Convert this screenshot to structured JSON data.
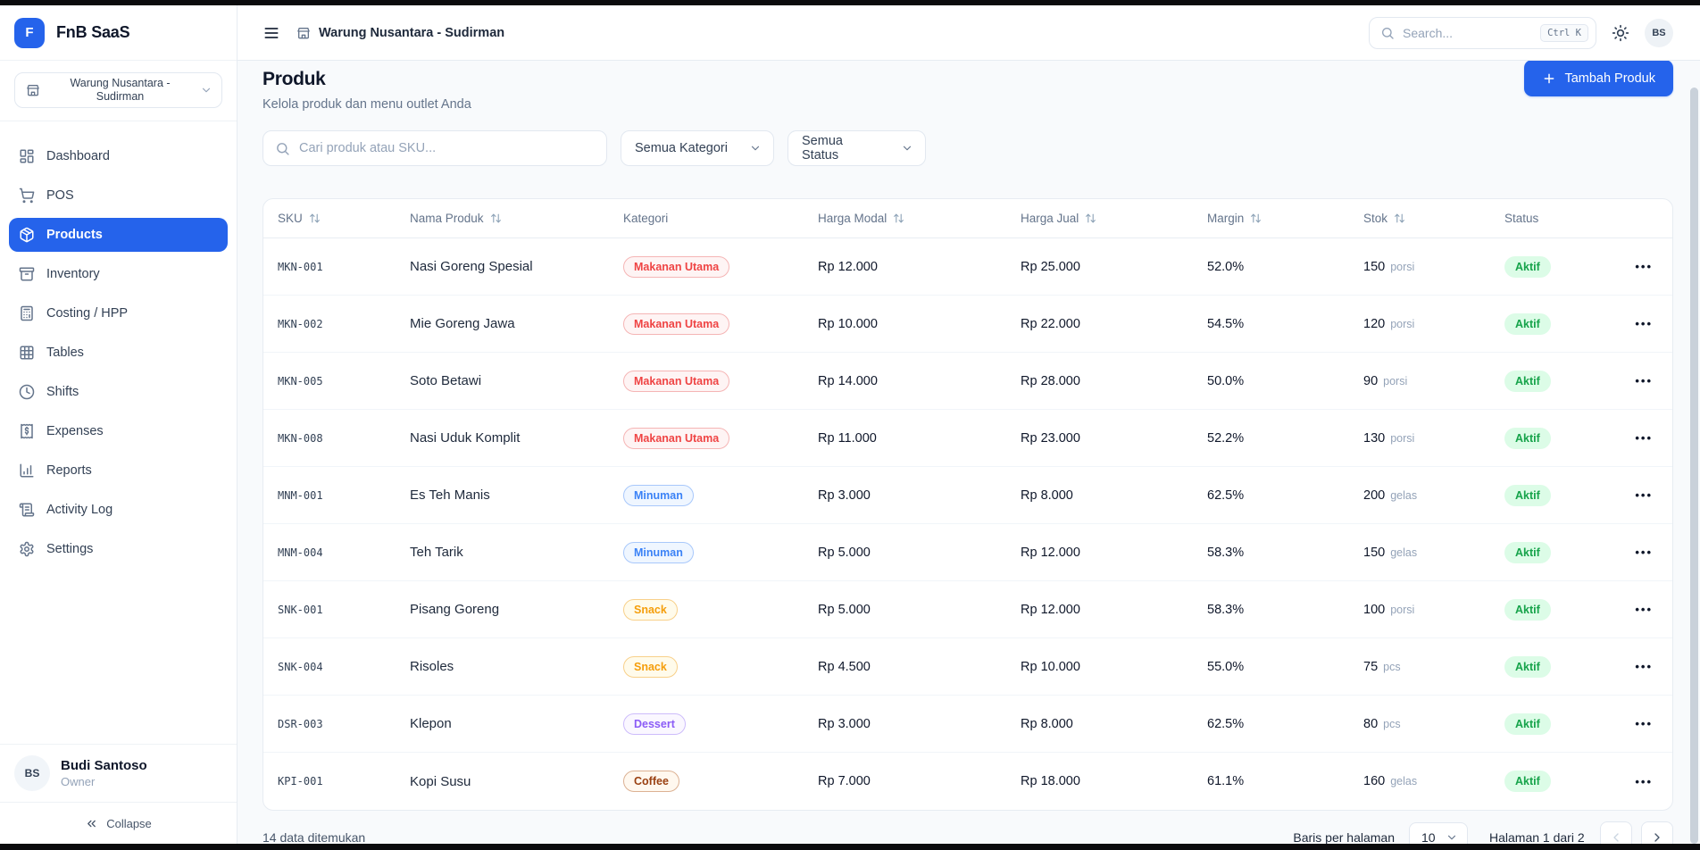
{
  "app": {
    "name": "FnB SaaS",
    "logo_letter": "F"
  },
  "sidebar": {
    "outlet_selector": "Warung Nusantara - Sudirman",
    "items": [
      {
        "label": "Dashboard",
        "icon": "dashboard",
        "active": false
      },
      {
        "label": "POS",
        "icon": "cart",
        "active": false
      },
      {
        "label": "Products",
        "icon": "package",
        "active": true
      },
      {
        "label": "Inventory",
        "icon": "archive",
        "active": false
      },
      {
        "label": "Costing / HPP",
        "icon": "calculator",
        "active": false
      },
      {
        "label": "Tables",
        "icon": "grid",
        "active": false
      },
      {
        "label": "Shifts",
        "icon": "clock",
        "active": false
      },
      {
        "label": "Expenses",
        "icon": "receipt",
        "active": false
      },
      {
        "label": "Reports",
        "icon": "chart",
        "active": false
      },
      {
        "label": "Activity Log",
        "icon": "scroll",
        "active": false
      },
      {
        "label": "Settings",
        "icon": "gear",
        "active": false
      }
    ],
    "user": {
      "initials": "BS",
      "name": "Budi Santoso",
      "role": "Owner"
    },
    "collapse_label": "Collapse"
  },
  "header": {
    "breadcrumb": "Warung Nusantara - Sudirman",
    "search_placeholder": "Search...",
    "search_shortcut": "Ctrl K",
    "avatar_initials": "BS"
  },
  "page": {
    "title": "Produk",
    "subtitle": "Kelola produk dan menu outlet Anda",
    "add_button_label": "Tambah Produk",
    "filter_search_placeholder": "Cari produk atau SKU...",
    "category_filter_value": "Semua Kategori",
    "status_filter_value": "Semua Status"
  },
  "table": {
    "columns": [
      {
        "label": "SKU",
        "sortable": true
      },
      {
        "label": "Nama Produk",
        "sortable": true
      },
      {
        "label": "Kategori",
        "sortable": false
      },
      {
        "label": "Harga Modal",
        "sortable": true
      },
      {
        "label": "Harga Jual",
        "sortable": true
      },
      {
        "label": "Margin",
        "sortable": true
      },
      {
        "label": "Stok",
        "sortable": true
      },
      {
        "label": "Status",
        "sortable": false
      }
    ],
    "rows": [
      {
        "sku": "MKN-001",
        "name": "Nasi Goreng Spesial",
        "category": "Makanan Utama",
        "cost": "Rp 12.000",
        "price": "Rp 25.000",
        "margin": "52.0%",
        "stock": "150",
        "unit": "porsi",
        "status": "Aktif"
      },
      {
        "sku": "MKN-002",
        "name": "Mie Goreng Jawa",
        "category": "Makanan Utama",
        "cost": "Rp 10.000",
        "price": "Rp 22.000",
        "margin": "54.5%",
        "stock": "120",
        "unit": "porsi",
        "status": "Aktif"
      },
      {
        "sku": "MKN-005",
        "name": "Soto Betawi",
        "category": "Makanan Utama",
        "cost": "Rp 14.000",
        "price": "Rp 28.000",
        "margin": "50.0%",
        "stock": "90",
        "unit": "porsi",
        "status": "Aktif"
      },
      {
        "sku": "MKN-008",
        "name": "Nasi Uduk Komplit",
        "category": "Makanan Utama",
        "cost": "Rp 11.000",
        "price": "Rp 23.000",
        "margin": "52.2%",
        "stock": "130",
        "unit": "porsi",
        "status": "Aktif"
      },
      {
        "sku": "MNM-001",
        "name": "Es Teh Manis",
        "category": "Minuman",
        "cost": "Rp 3.000",
        "price": "Rp 8.000",
        "margin": "62.5%",
        "stock": "200",
        "unit": "gelas",
        "status": "Aktif"
      },
      {
        "sku": "MNM-004",
        "name": "Teh Tarik",
        "category": "Minuman",
        "cost": "Rp 5.000",
        "price": "Rp 12.000",
        "margin": "58.3%",
        "stock": "150",
        "unit": "gelas",
        "status": "Aktif"
      },
      {
        "sku": "SNK-001",
        "name": "Pisang Goreng",
        "category": "Snack",
        "cost": "Rp 5.000",
        "price": "Rp 12.000",
        "margin": "58.3%",
        "stock": "100",
        "unit": "porsi",
        "status": "Aktif"
      },
      {
        "sku": "SNK-004",
        "name": "Risoles",
        "category": "Snack",
        "cost": "Rp 4.500",
        "price": "Rp 10.000",
        "margin": "55.0%",
        "stock": "75",
        "unit": "pcs",
        "status": "Aktif"
      },
      {
        "sku": "DSR-003",
        "name": "Klepon",
        "category": "Dessert",
        "cost": "Rp 3.000",
        "price": "Rp 8.000",
        "margin": "62.5%",
        "stock": "80",
        "unit": "pcs",
        "status": "Aktif"
      },
      {
        "sku": "KPI-001",
        "name": "Kopi Susu",
        "category": "Coffee",
        "cost": "Rp 7.000",
        "price": "Rp 18.000",
        "margin": "61.1%",
        "stock": "160",
        "unit": "gelas",
        "status": "Aktif"
      }
    ]
  },
  "category_colors": {
    "Makanan Utama": {
      "text": "#ef4444",
      "border": "#f5b5b5",
      "bg": "#fef4f4"
    },
    "Minuman": {
      "text": "#3b82f6",
      "border": "#a8c8fb",
      "bg": "#eff6ff"
    },
    "Snack": {
      "text": "#f59e0b",
      "border": "#f8d08a",
      "bg": "#fffbeb"
    },
    "Dessert": {
      "text": "#8b5cf6",
      "border": "#cdbcfb",
      "bg": "#faf7ff"
    },
    "Coffee": {
      "text": "#9a4112",
      "border": "#dcb193",
      "bg": "#fff8ef"
    }
  },
  "status_colors": {
    "Aktif": {
      "text": "#16a34a",
      "bg": "#dcfce7"
    }
  },
  "footer": {
    "results_text": "14 data ditemukan",
    "rows_per_page_label": "Baris per halaman",
    "rows_per_page_value": "10",
    "page_text": "Halaman 1 dari 2"
  },
  "colors": {
    "primary": "#2563eb"
  }
}
